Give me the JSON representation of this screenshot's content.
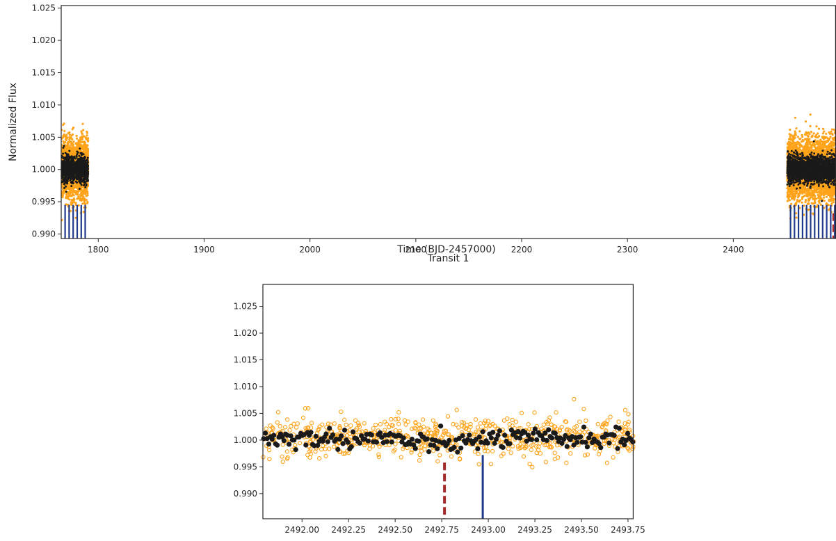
{
  "colors": {
    "raw_points": "#ffa31a",
    "binned_points": "#1a1a1a",
    "transit_marker": "#1f3a8a",
    "candidate_marker": "#a52a2a",
    "axes": "#262626"
  },
  "chart_data": [
    {
      "type": "scatter",
      "title": "",
      "xlabel": "Time (BJD-2457000)",
      "ylabel": "Normalized Flux",
      "xlim": [
        1765,
        2497
      ],
      "ylim": [
        0.9893,
        1.0254
      ],
      "xticks": [
        1800,
        1900,
        2000,
        2100,
        2200,
        2300,
        2400
      ],
      "xtick_labels": [
        "1800",
        "1900",
        "2000",
        "2100",
        "2200",
        "2300",
        "2400"
      ],
      "yticks": [
        0.99,
        0.995,
        1.0,
        1.005,
        1.01,
        1.015,
        1.02,
        1.025
      ],
      "ytick_labels": [
        "0.990",
        "0.995",
        "1.000",
        "1.005",
        "1.010",
        "1.015",
        "1.020",
        "1.025"
      ],
      "grid": false,
      "series": [
        {
          "style": "orange-dots",
          "segments": [
            [
              1765.5,
              1777.5
            ],
            [
              1778.5,
              1790.5
            ],
            [
              2451,
              2463.5
            ],
            [
              2464.5,
              2477.5
            ],
            [
              2478,
              2497
            ]
          ],
          "center": 1.0,
          "spread": 0.0045
        },
        {
          "style": "black-dots",
          "segments": [
            [
              1765.5,
              1777.5
            ],
            [
              1778.5,
              1790.5
            ],
            [
              2451,
              2463.5
            ],
            [
              2464.5,
              2477.5
            ],
            [
              2478,
              2497
            ]
          ],
          "center": 1.0,
          "spread": 0.0017
        }
      ],
      "transit_markers": [
        1768.7,
        1772.5,
        1776.3,
        1780.1,
        1783.9,
        1787.7,
        2454.0,
        2457.8,
        2461.6,
        2465.4,
        2469.2,
        2473.0,
        2476.8,
        2480.6,
        2484.4,
        2488.2,
        2492.0,
        2495.8
      ],
      "marker_top": 0.9945,
      "candidate_markers": [
        2494.4
      ],
      "candidate_top": 0.9932
    },
    {
      "type": "scatter",
      "title": "Transit 1",
      "xlabel": "",
      "ylabel": "",
      "xlim": [
        2491.79,
        2493.78
      ],
      "ylim": [
        0.9853,
        1.0291
      ],
      "xticks": [
        2492.0,
        2492.25,
        2492.5,
        2492.75,
        2493.0,
        2493.25,
        2493.5,
        2493.75
      ],
      "xtick_labels": [
        "2492.00",
        "2492.25",
        "2492.50",
        "2492.75",
        "2493.00",
        "2493.25",
        "2493.50",
        "2493.75"
      ],
      "yticks": [
        0.99,
        0.995,
        1.0,
        1.005,
        1.01,
        1.015,
        1.02,
        1.025
      ],
      "ytick_labels": [
        "0.990",
        "0.995",
        "1.000",
        "1.005",
        "1.010",
        "1.015",
        "1.020",
        "1.025"
      ],
      "grid": false,
      "series": [
        {
          "style": "orange-open-circles",
          "range": [
            2491.79,
            2493.78
          ],
          "center": 1.0005,
          "spread": 0.0022
        },
        {
          "style": "black-filled-circles",
          "range": [
            2491.79,
            2493.78
          ],
          "center": 1.0003,
          "spread": 0.0009
        }
      ],
      "transit_markers": [
        2492.97
      ],
      "marker_top": 0.9972,
      "candidate_markers": [
        2492.765
      ],
      "candidate_top": 0.9958
    }
  ]
}
